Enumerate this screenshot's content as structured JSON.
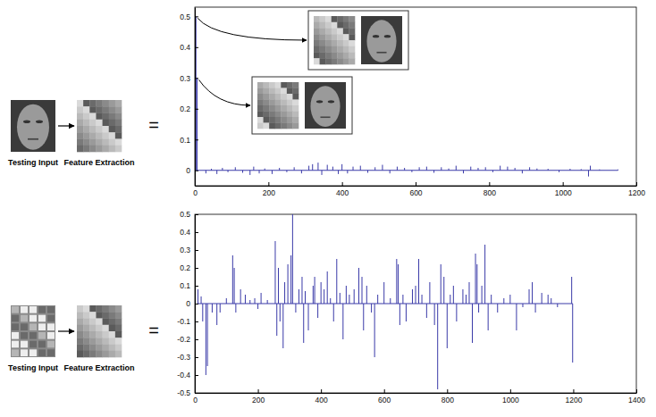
{
  "chart_data": [
    {
      "type": "stem",
      "color": "#3a3aa8",
      "annotations": [
        "Testing Input",
        "Feature Extraction",
        "="
      ],
      "xlim": [
        0,
        1200
      ],
      "xticks": [
        0,
        200,
        400,
        600,
        800,
        1000,
        1200
      ],
      "ylim": [
        -0.05,
        0.53
      ],
      "yticks": [
        0,
        0.1,
        0.2,
        0.3,
        0.4,
        0.5
      ],
      "x": [
        3,
        6,
        30,
        45,
        60,
        75,
        90,
        110,
        130,
        150,
        160,
        175,
        190,
        210,
        230,
        250,
        270,
        290,
        310,
        320,
        335,
        345,
        360,
        375,
        390,
        400,
        415,
        430,
        450,
        470,
        490,
        510,
        530,
        550,
        570,
        590,
        610,
        630,
        650,
        670,
        690,
        710,
        730,
        750,
        770,
        790,
        810,
        830,
        850,
        870,
        890,
        910,
        930,
        960,
        990,
        1020,
        1050,
        1070,
        1075,
        1100,
        1150
      ],
      "values": [
        0.5,
        0.3,
        -0.01,
        0.005,
        -0.012,
        0.008,
        -0.006,
        0.01,
        -0.008,
        -0.015,
        0.012,
        -0.01,
        0.006,
        -0.012,
        0.008,
        -0.006,
        0.01,
        -0.01,
        0.015,
        0.02,
        0.025,
        -0.015,
        0.018,
        0.012,
        -0.012,
        0.02,
        -0.01,
        0.012,
        0.015,
        -0.008,
        0.01,
        0.018,
        -0.01,
        0.012,
        0.008,
        -0.006,
        0.01,
        0.012,
        -0.008,
        0.01,
        0.006,
        0.015,
        -0.01,
        0.012,
        0.008,
        0.01,
        -0.006,
        0.015,
        0.012,
        0.008,
        -0.01,
        0.01,
        0.006,
        0.005,
        -0.006,
        0.005,
        0.004,
        -0.02,
        0.015,
        0.003,
        0.003
      ]
    },
    {
      "type": "stem",
      "color": "#3a3aa8",
      "annotations": [
        "Testing Input",
        "Feature Extraction",
        "="
      ],
      "xlim": [
        0,
        1400
      ],
      "xticks": [
        0,
        200,
        400,
        600,
        800,
        1000,
        1200,
        1400
      ],
      "ylim": [
        -0.5,
        0.5
      ],
      "yticks": [
        -0.5,
        -0.4,
        -0.3,
        -0.2,
        -0.1,
        0,
        0.1,
        0.2,
        0.3,
        0.4,
        0.5
      ],
      "x": [
        10,
        20,
        25,
        35,
        40,
        55,
        70,
        80,
        100,
        120,
        125,
        130,
        145,
        160,
        175,
        190,
        200,
        210,
        230,
        255,
        260,
        265,
        270,
        280,
        285,
        295,
        305,
        310,
        320,
        330,
        340,
        345,
        350,
        360,
        375,
        380,
        390,
        400,
        410,
        420,
        430,
        440,
        450,
        460,
        470,
        480,
        490,
        505,
        520,
        530,
        535,
        545,
        560,
        570,
        580,
        600,
        620,
        640,
        645,
        650,
        660,
        670,
        690,
        700,
        710,
        720,
        735,
        745,
        760,
        770,
        780,
        790,
        800,
        810,
        820,
        830,
        850,
        860,
        870,
        880,
        890,
        895,
        900,
        910,
        920,
        930,
        940,
        960,
        980,
        1000,
        1020,
        1040,
        1060,
        1070,
        1080,
        1100,
        1120,
        1130,
        1150,
        1195,
        1198
      ],
      "values": [
        0.08,
        0.04,
        -0.1,
        -0.4,
        -0.35,
        -0.05,
        -0.12,
        -0.05,
        0.03,
        0.27,
        0.2,
        -0.05,
        0.08,
        0.05,
        0.02,
        0.03,
        -0.03,
        0.06,
        0.02,
        0.35,
        -0.18,
        0.2,
        -0.1,
        -0.25,
        0.12,
        0.22,
        0.27,
        0.5,
        -0.05,
        0.08,
        0.15,
        -0.22,
        0.07,
        -0.15,
        0.1,
        0.15,
        -0.08,
        0.12,
        0.08,
        0.18,
        0.03,
        -0.1,
        0.25,
        0.06,
        -0.2,
        0.1,
        0.05,
        0.08,
        0.2,
        0.15,
        -0.15,
        0.1,
        -0.05,
        -0.3,
        0.05,
        0.12,
        0.03,
        0.25,
        0.22,
        -0.12,
        0.05,
        -0.1,
        0.08,
        0.1,
        0.25,
        0.05,
        -0.08,
        0.12,
        -0.12,
        -0.48,
        0.22,
        0.15,
        -0.25,
        0.05,
        0.1,
        -0.1,
        0.08,
        0.05,
        0.12,
        -0.22,
        0.28,
        0.22,
        -0.05,
        0.1,
        0.33,
        -0.15,
        0.05,
        -0.05,
        0.03,
        0.05,
        -0.15,
        -0.02,
        0.08,
        0.12,
        -0.05,
        0.06,
        0.05,
        0.03,
        -0.02,
        0.15,
        -0.33
      ]
    }
  ]
}
